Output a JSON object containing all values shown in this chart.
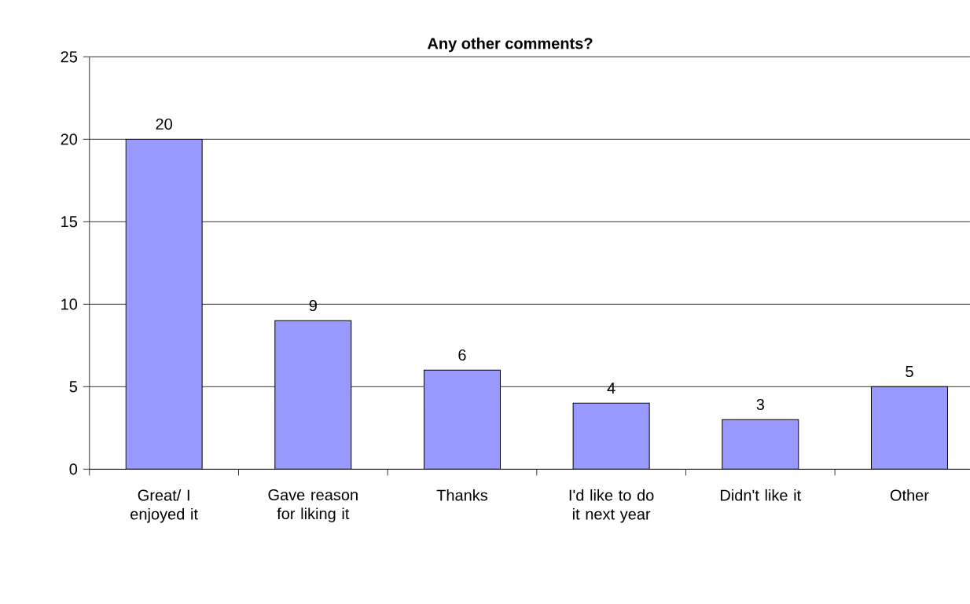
{
  "chart_data": {
    "type": "bar",
    "title": "Any other comments?",
    "categories": [
      "Great/ I enjoyed it",
      "Gave reason for liking it",
      "Thanks",
      "I'd like to do it next year",
      "Didn't like it",
      "Other"
    ],
    "values": [
      20,
      9,
      6,
      4,
      3,
      5
    ],
    "color": "#9999ff",
    "ylim": [
      0,
      25
    ],
    "yticks": [
      0,
      5,
      10,
      15,
      20,
      25
    ],
    "grid": "y",
    "data_labels": true
  }
}
